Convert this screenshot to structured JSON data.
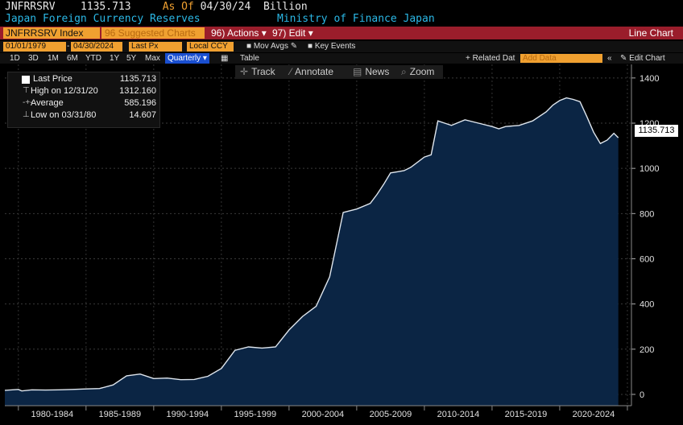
{
  "header": {
    "ticker": "JNFRRSRV",
    "last_value": "1135.713",
    "as_of_label": "As Of",
    "as_of_date": "04/30/24",
    "unit": "Billion",
    "series_title": "Japan Foreign Currency Reserves",
    "source": "Ministry of Finance Japan"
  },
  "toolbar": {
    "security_field": "JNFRRSRV Index",
    "suggested_charts": "96 Suggested Charts",
    "actions": "96) Actions",
    "edit": "97) Edit",
    "chart_type": "Line Chart"
  },
  "controls": {
    "start_date": "01/01/1979",
    "end_date": "04/30/2024",
    "field": "Last Px",
    "currency": "Local CCY",
    "mov_avgs": "Mov Avgs",
    "key_events": "Key Events",
    "periods": [
      "1D",
      "3D",
      "1M",
      "6M",
      "YTD",
      "1Y",
      "5Y",
      "Max"
    ],
    "frequency": "Quarterly",
    "table": "Table",
    "related_data": "+ Related Dat",
    "add_data": "Add Data",
    "edit_chart": "Edit Chart"
  },
  "tools": {
    "track": "Track",
    "annotate": "Annotate",
    "news": "News",
    "zoom": "Zoom"
  },
  "legend": {
    "last_price_label": "Last Price",
    "last_price_value": "1135.713",
    "high_label": "High on 12/31/20",
    "high_value": "1312.160",
    "average_label": "Average",
    "average_value": "585.196",
    "low_label": "Low on 03/31/80",
    "low_value": "14.607"
  },
  "last_value_label": "1135.713",
  "colors": {
    "background": "#000000",
    "area_fill": "#0b2544",
    "line": "#dfe6ee",
    "accent_orange": "#f0a030",
    "toolbar_red": "#9a1d2b",
    "header_cyan": "#2bb8e6"
  },
  "chart_data": {
    "type": "area",
    "title": "Japan Foreign Currency Reserves",
    "unit": "Billion",
    "frequency": "Quarterly",
    "x": [
      1979.0,
      1980.0,
      1980.25,
      1981,
      1982,
      1983,
      1984,
      1985,
      1986,
      1987,
      1988,
      1989,
      1990,
      1991,
      1992,
      1993,
      1994,
      1995,
      1996,
      1997,
      1998,
      1999,
      2000,
      2001,
      2002,
      2003,
      2004,
      2005,
      2006,
      2006.5,
      2007,
      2007.5,
      2008,
      2008.5,
      2009,
      2010,
      2010.5,
      2011,
      2011.5,
      2012,
      2013,
      2014,
      2015,
      2015.5,
      2016,
      2017,
      2018,
      2019,
      2019.5,
      2020,
      2020.5,
      2021,
      2021.5,
      2022,
      2022.5,
      2023,
      2023.5,
      2024,
      2024.33
    ],
    "y": [
      18,
      22,
      15,
      20,
      19,
      20,
      22,
      24,
      26,
      42,
      82,
      90,
      70,
      72,
      65,
      66,
      80,
      115,
      195,
      210,
      205,
      210,
      285,
      345,
      390,
      520,
      805,
      820,
      845,
      885,
      930,
      980,
      985,
      990,
      1005,
      1050,
      1060,
      1210,
      1200,
      1190,
      1215,
      1200,
      1185,
      1175,
      1185,
      1190,
      1210,
      1250,
      1280,
      1300,
      1312,
      1305,
      1295,
      1230,
      1160,
      1110,
      1125,
      1155,
      1135.713
    ],
    "x_tick_labels": [
      "1980-1984",
      "1985-1989",
      "1990-1994",
      "1995-1999",
      "2000-2004",
      "2005-2009",
      "2010-2014",
      "2015-2019",
      "2020-2024"
    ],
    "y_ticks": [
      0,
      200,
      400,
      600,
      800,
      1000,
      1200,
      1400
    ],
    "ylim": [
      -50,
      1460
    ],
    "xlim": [
      1979,
      2025.3
    ],
    "grid": true,
    "legend": "top-left"
  }
}
